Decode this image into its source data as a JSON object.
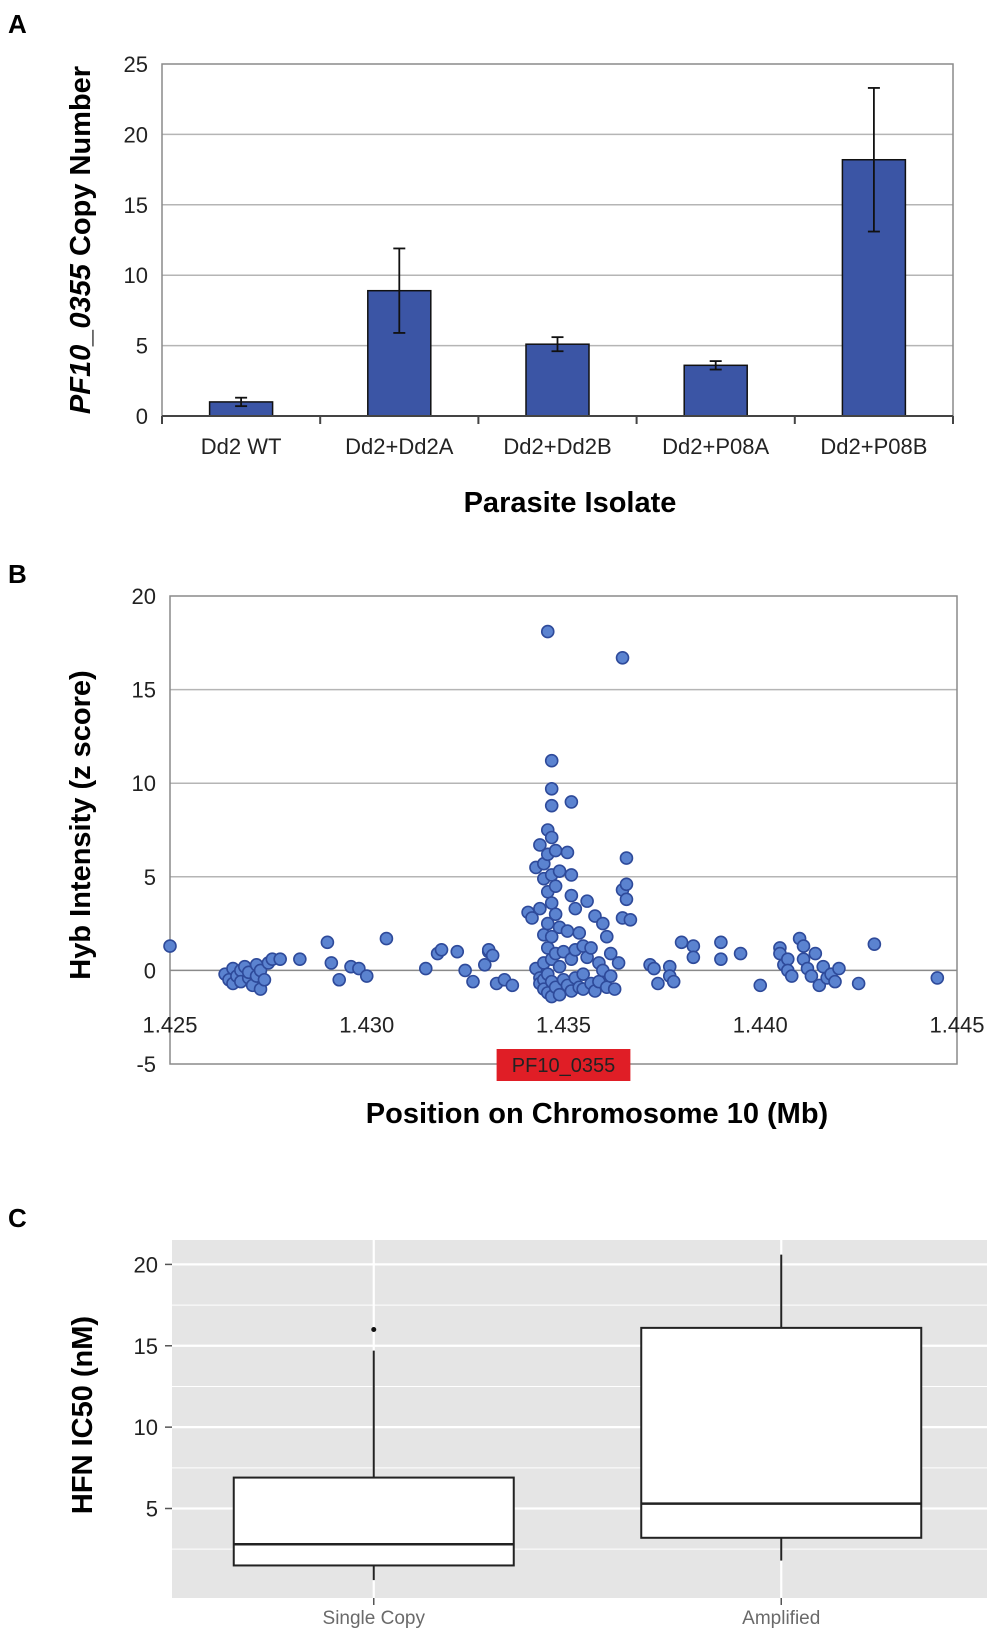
{
  "colors": {
    "bar": "#3b55a5",
    "point": "#5b83d0",
    "point_stroke": "#2e4a9a",
    "grid": "#b5b5b5",
    "gene_box": "#e01e26",
    "ggplot_bg": "#e5e5e5"
  },
  "chart_data": [
    {
      "panel_label": "A",
      "type": "bar",
      "categories": [
        "Dd2 WT",
        "Dd2+Dd2A",
        "Dd2+Dd2B",
        "Dd2+P08A",
        "Dd2+P08B"
      ],
      "values": [
        1.0,
        8.9,
        5.1,
        3.6,
        18.2
      ],
      "errors": [
        0.3,
        3.0,
        0.5,
        0.3,
        5.1
      ],
      "ylabel_gene": "PF10_0355",
      "ylabel_rest": " Copy Number",
      "xlabel": "Parasite Isolate",
      "ylim": [
        0,
        25
      ],
      "yticks": [
        0,
        5,
        10,
        15,
        20,
        25
      ],
      "grid": true
    },
    {
      "panel_label": "B",
      "type": "scatter",
      "xlabel": "Position on Chromosome 10 (Mb)",
      "ylabel": "Hyb Intensity (z score)",
      "xlim": [
        1.425,
        1.445
      ],
      "ylim": [
        -5,
        20
      ],
      "xticks": [
        "1.425",
        "1.430",
        "1.435",
        "1.440",
        "1.445"
      ],
      "yticks": [
        "-5",
        "0",
        "5",
        "10",
        "15",
        "20"
      ],
      "annotation": "PF10_0355",
      "annotation_range": [
        1.4333,
        1.4367
      ],
      "grid": true,
      "points": [
        [
          1.425,
          1.3
        ],
        [
          1.4264,
          -0.2
        ],
        [
          1.4265,
          -0.5
        ],
        [
          1.4266,
          0.1
        ],
        [
          1.4266,
          -0.7
        ],
        [
          1.4267,
          -0.3
        ],
        [
          1.4268,
          0.0
        ],
        [
          1.4268,
          -0.6
        ],
        [
          1.4269,
          0.2
        ],
        [
          1.427,
          -0.4
        ],
        [
          1.427,
          -0.1
        ],
        [
          1.4271,
          -0.8
        ],
        [
          1.4272,
          0.3
        ],
        [
          1.4272,
          -0.3
        ],
        [
          1.4273,
          -1.0
        ],
        [
          1.4273,
          0.0
        ],
        [
          1.4274,
          -0.5
        ],
        [
          1.4275,
          0.4
        ],
        [
          1.4276,
          0.6
        ],
        [
          1.4278,
          0.6
        ],
        [
          1.4283,
          0.6
        ],
        [
          1.429,
          1.5
        ],
        [
          1.4291,
          0.4
        ],
        [
          1.4293,
          -0.5
        ],
        [
          1.4296,
          0.2
        ],
        [
          1.4298,
          0.1
        ],
        [
          1.43,
          -0.3
        ],
        [
          1.4305,
          1.7
        ],
        [
          1.4315,
          0.1
        ],
        [
          1.4318,
          0.9
        ],
        [
          1.4319,
          1.1
        ],
        [
          1.4323,
          1.0
        ],
        [
          1.4325,
          0.0
        ],
        [
          1.4327,
          -0.6
        ],
        [
          1.433,
          0.3
        ],
        [
          1.4331,
          1.0
        ],
        [
          1.4331,
          1.1
        ],
        [
          1.4332,
          0.8
        ],
        [
          1.4333,
          -0.7
        ],
        [
          1.4335,
          -0.5
        ],
        [
          1.4337,
          -0.8
        ],
        [
          1.4341,
          3.1
        ],
        [
          1.4342,
          2.8
        ],
        [
          1.4343,
          5.5
        ],
        [
          1.4343,
          0.1
        ],
        [
          1.4344,
          6.7
        ],
        [
          1.4344,
          3.3
        ],
        [
          1.4344,
          -0.4
        ],
        [
          1.4344,
          -0.7
        ],
        [
          1.4345,
          5.7
        ],
        [
          1.4345,
          4.9
        ],
        [
          1.4345,
          1.9
        ],
        [
          1.4345,
          0.4
        ],
        [
          1.4345,
          -0.5
        ],
        [
          1.4345,
          -1.0
        ],
        [
          1.4346,
          18.1
        ],
        [
          1.4346,
          7.5
        ],
        [
          1.4346,
          6.2
        ],
        [
          1.4346,
          4.2
        ],
        [
          1.4346,
          2.5
        ],
        [
          1.4346,
          1.2
        ],
        [
          1.4346,
          -0.2
        ],
        [
          1.4346,
          -1.2
        ],
        [
          1.4347,
          11.2
        ],
        [
          1.4347,
          9.7
        ],
        [
          1.4347,
          8.8
        ],
        [
          1.4347,
          7.1
        ],
        [
          1.4347,
          5.1
        ],
        [
          1.4347,
          3.6
        ],
        [
          1.4347,
          1.8
        ],
        [
          1.4347,
          0.6
        ],
        [
          1.4347,
          -0.6
        ],
        [
          1.4347,
          -1.4
        ],
        [
          1.4348,
          6.4
        ],
        [
          1.4348,
          4.5
        ],
        [
          1.4348,
          3.0
        ],
        [
          1.4348,
          0.9
        ],
        [
          1.4348,
          -0.9
        ],
        [
          1.4349,
          5.3
        ],
        [
          1.4349,
          2.3
        ],
        [
          1.4349,
          0.2
        ],
        [
          1.4349,
          -1.3
        ],
        [
          1.435,
          1.0
        ],
        [
          1.435,
          -0.5
        ],
        [
          1.4351,
          6.3
        ],
        [
          1.4351,
          2.1
        ],
        [
          1.4351,
          -0.8
        ],
        [
          1.4352,
          9.0
        ],
        [
          1.4352,
          5.1
        ],
        [
          1.4352,
          4.0
        ],
        [
          1.4352,
          0.6
        ],
        [
          1.4352,
          -1.1
        ],
        [
          1.4353,
          3.3
        ],
        [
          1.4353,
          1.1
        ],
        [
          1.4353,
          -0.4
        ],
        [
          1.4354,
          2.0
        ],
        [
          1.4354,
          -0.9
        ],
        [
          1.4355,
          1.3
        ],
        [
          1.4355,
          -0.2
        ],
        [
          1.4355,
          -1.0
        ],
        [
          1.4356,
          3.7
        ],
        [
          1.4356,
          0.7
        ],
        [
          1.4357,
          -0.7
        ],
        [
          1.4357,
          1.2
        ],
        [
          1.4358,
          2.9
        ],
        [
          1.4358,
          -1.1
        ],
        [
          1.4359,
          0.4
        ],
        [
          1.4359,
          -0.6
        ],
        [
          1.436,
          2.5
        ],
        [
          1.436,
          0.0
        ],
        [
          1.4361,
          1.8
        ],
        [
          1.4361,
          -0.9
        ],
        [
          1.4362,
          0.9
        ],
        [
          1.4362,
          -0.3
        ],
        [
          1.4363,
          -1.0
        ],
        [
          1.4364,
          0.4
        ],
        [
          1.4365,
          16.7
        ],
        [
          1.4365,
          4.3
        ],
        [
          1.4365,
          2.8
        ],
        [
          1.4366,
          6.0
        ],
        [
          1.4366,
          4.6
        ],
        [
          1.4366,
          3.8
        ],
        [
          1.4367,
          2.7
        ],
        [
          1.4372,
          0.3
        ],
        [
          1.4373,
          0.1
        ],
        [
          1.4374,
          -0.7
        ],
        [
          1.4377,
          0.2
        ],
        [
          1.4377,
          -0.3
        ],
        [
          1.4378,
          -0.6
        ],
        [
          1.438,
          1.5
        ],
        [
          1.4383,
          1.3
        ],
        [
          1.4383,
          0.7
        ],
        [
          1.439,
          1.5
        ],
        [
          1.439,
          0.6
        ],
        [
          1.4395,
          0.9
        ],
        [
          1.44,
          -0.8
        ],
        [
          1.4405,
          1.2
        ],
        [
          1.4405,
          0.9
        ],
        [
          1.4406,
          0.3
        ],
        [
          1.4407,
          0.6
        ],
        [
          1.4407,
          0.0
        ],
        [
          1.4408,
          -0.3
        ],
        [
          1.441,
          1.7
        ],
        [
          1.4411,
          1.3
        ],
        [
          1.4411,
          0.6
        ],
        [
          1.4412,
          0.1
        ],
        [
          1.4413,
          -0.3
        ],
        [
          1.4414,
          0.9
        ],
        [
          1.4415,
          -0.8
        ],
        [
          1.4416,
          0.2
        ],
        [
          1.4417,
          -0.4
        ],
        [
          1.4418,
          -0.2
        ],
        [
          1.4419,
          -0.6
        ],
        [
          1.442,
          0.1
        ],
        [
          1.4425,
          -0.7
        ],
        [
          1.4429,
          1.4
        ],
        [
          1.4445,
          -0.4
        ]
      ]
    },
    {
      "panel_label": "C",
      "type": "boxplot",
      "ylabel": "HFN IC50 (nM)",
      "yticks": [
        "5",
        "10",
        "15",
        "20"
      ],
      "ylim": [
        -0.5,
        21.5
      ],
      "categories": [
        "Single Copy",
        "Amplified"
      ],
      "boxes": [
        {
          "name": "Single Copy",
          "lower_whisker": 0.6,
          "q1": 1.5,
          "median": 2.8,
          "q3": 6.9,
          "upper_whisker": 14.7,
          "outliers": [
            16.0
          ]
        },
        {
          "name": "Amplified",
          "lower_whisker": 1.8,
          "q1": 3.2,
          "median": 5.3,
          "q3": 16.1,
          "upper_whisker": 20.6,
          "outliers": []
        }
      ]
    }
  ]
}
